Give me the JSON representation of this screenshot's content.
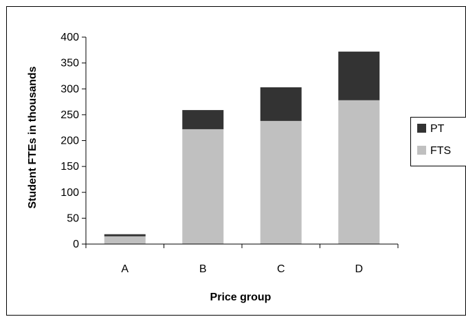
{
  "chart_data": {
    "type": "bar",
    "stacked": true,
    "categories": [
      "A",
      "B",
      "C",
      "D"
    ],
    "series": [
      {
        "name": "FTS",
        "values": [
          15,
          222,
          238,
          278
        ],
        "color": "#c0c0c0"
      },
      {
        "name": "PT",
        "values": [
          4,
          37,
          65,
          94
        ],
        "color": "#333333"
      }
    ],
    "xlabel": "Price group",
    "ylabel": "Student FTEs in thousands",
    "ylim": [
      0,
      400
    ],
    "yticks": [
      0,
      50,
      100,
      150,
      200,
      250,
      300,
      350,
      400
    ],
    "legend": "right",
    "legend_order": [
      "PT",
      "FTS"
    ],
    "grid": false
  }
}
